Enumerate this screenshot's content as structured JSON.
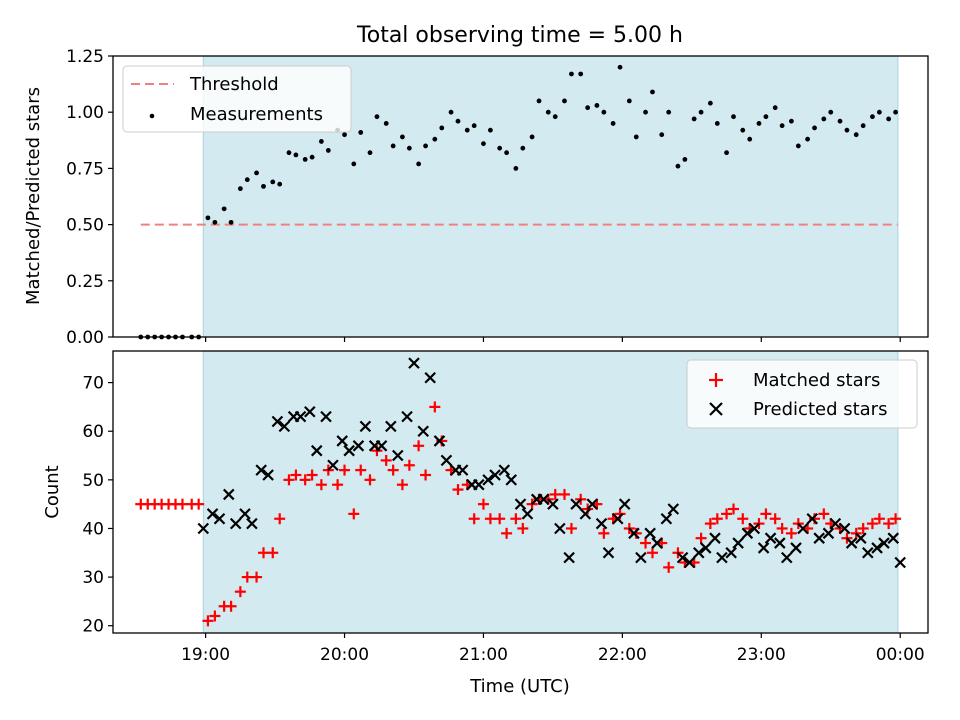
{
  "chart_data": {
    "type": "scatter",
    "title": "Total observing time = 5.00 h",
    "xlabel": "Time (UTC)",
    "x_ticks": [
      "19:00",
      "20:00",
      "21:00",
      "22:00",
      "23:00",
      "00:00"
    ],
    "x_tick_minutes": [
      1140,
      1200,
      1260,
      1320,
      1380,
      1440
    ],
    "xlim_minutes": [
      1100,
      1452
    ],
    "shaded_span_minutes": [
      1139,
      1439
    ],
    "shade_color": "#d4eaf1",
    "panels": [
      {
        "ylabel": "Matched/Predicted stars",
        "ylim": [
          0,
          1.25
        ],
        "y_ticks": [
          0.0,
          0.25,
          0.5,
          0.75,
          1.0,
          1.25
        ],
        "y_tick_labels": [
          "0.00",
          "0.25",
          "0.50",
          "0.75",
          "1.00",
          "1.25"
        ],
        "legend": {
          "position": "upper left",
          "entries": [
            "Threshold",
            "Measurements"
          ]
        },
        "threshold": {
          "name": "Threshold",
          "value": 0.5,
          "x_range_minutes": [
            1112,
            1439
          ],
          "color": "#f08080"
        },
        "series": [
          {
            "name": "Measurements",
            "marker": "dot",
            "color": "#000000",
            "x_minutes": [
              1112,
              1115,
              1118,
              1121,
              1124,
              1127,
              1130,
              1134,
              1137,
              1141,
              1144,
              1148,
              1151,
              1155,
              1158,
              1162,
              1165,
              1169,
              1172,
              1176,
              1179,
              1183,
              1186,
              1190,
              1193,
              1197,
              1200,
              1204,
              1207,
              1211,
              1214,
              1218,
              1221,
              1225,
              1228,
              1232,
              1235,
              1239,
              1242,
              1246,
              1249,
              1253,
              1256,
              1260,
              1263,
              1267,
              1270,
              1274,
              1277,
              1281,
              1284,
              1288,
              1291,
              1295,
              1298,
              1302,
              1305,
              1309,
              1312,
              1316,
              1319,
              1323,
              1326,
              1330,
              1333,
              1337,
              1340,
              1344,
              1347,
              1351,
              1354,
              1358,
              1361,
              1365,
              1368,
              1372,
              1375,
              1379,
              1382,
              1386,
              1389,
              1393,
              1396,
              1400,
              1403,
              1407,
              1410,
              1414,
              1417,
              1421,
              1424,
              1428,
              1431,
              1435,
              1438
            ],
            "y": [
              0.0,
              0.0,
              0.0,
              0.0,
              0.0,
              0.0,
              0.0,
              0.0,
              0.0,
              0.53,
              0.51,
              0.57,
              0.51,
              0.66,
              0.7,
              0.73,
              0.67,
              0.69,
              0.68,
              0.82,
              0.81,
              0.79,
              0.8,
              0.87,
              0.83,
              0.92,
              0.9,
              0.77,
              0.91,
              0.82,
              0.98,
              0.95,
              0.85,
              0.89,
              0.84,
              0.77,
              0.85,
              0.88,
              0.93,
              1.0,
              0.96,
              0.92,
              0.94,
              0.86,
              0.92,
              0.84,
              0.82,
              0.75,
              0.84,
              0.89,
              1.05,
              1.0,
              0.98,
              1.05,
              1.17,
              1.17,
              1.02,
              1.03,
              1.0,
              0.95,
              1.2,
              1.05,
              0.89,
              1.0,
              1.09,
              0.9,
              1.0,
              0.76,
              0.79,
              0.97,
              1.0,
              1.04,
              0.95,
              0.82,
              0.98,
              0.92,
              0.88,
              0.95,
              0.98,
              1.02,
              0.94,
              0.96,
              0.85,
              0.88,
              0.93,
              0.97,
              1.0,
              0.96,
              0.92,
              0.9,
              0.94,
              0.98,
              1.0,
              0.97,
              1.0
            ]
          }
        ]
      },
      {
        "ylabel": "Count",
        "ylim": [
          18.5,
          76.5
        ],
        "y_ticks": [
          20,
          30,
          40,
          50,
          60,
          70
        ],
        "y_tick_labels": [
          "20",
          "30",
          "40",
          "50",
          "60",
          "70"
        ],
        "legend": {
          "position": "upper right",
          "entries": [
            "Matched stars",
            "Predicted stars"
          ]
        },
        "series": [
          {
            "name": "Matched stars",
            "marker": "plus",
            "color": "#ff0000",
            "x_minutes": [
              1112,
              1115,
              1118,
              1121,
              1124,
              1127,
              1130,
              1134,
              1137,
              1141,
              1144,
              1148,
              1151,
              1155,
              1158,
              1162,
              1165,
              1169,
              1172,
              1176,
              1179,
              1183,
              1186,
              1190,
              1193,
              1197,
              1200,
              1204,
              1207,
              1211,
              1214,
              1218,
              1221,
              1225,
              1228,
              1232,
              1235,
              1239,
              1242,
              1246,
              1249,
              1253,
              1256,
              1260,
              1263,
              1267,
              1270,
              1274,
              1277,
              1281,
              1284,
              1288,
              1291,
              1295,
              1298,
              1302,
              1305,
              1309,
              1312,
              1316,
              1319,
              1323,
              1326,
              1330,
              1333,
              1337,
              1340,
              1344,
              1347,
              1351,
              1354,
              1358,
              1361,
              1365,
              1368,
              1372,
              1375,
              1379,
              1382,
              1386,
              1389,
              1393,
              1396,
              1400,
              1403,
              1407,
              1410,
              1414,
              1417,
              1421,
              1424,
              1428,
              1431,
              1435,
              1438
            ],
            "y": [
              45,
              45,
              45,
              45,
              45,
              45,
              45,
              45,
              45,
              21,
              22,
              24,
              24,
              27,
              30,
              30,
              35,
              35,
              42,
              50,
              51,
              50,
              51,
              49,
              52,
              49,
              52,
              43,
              52,
              50,
              56,
              54,
              52,
              49,
              53,
              57,
              51,
              65,
              58,
              52,
              48,
              49,
              42,
              45,
              42,
              42,
              39,
              42,
              40,
              45,
              46,
              46,
              47,
              47,
              40,
              46,
              44,
              45,
              39,
              42,
              43,
              40,
              39,
              37,
              35,
              37,
              32,
              35,
              33,
              33,
              38,
              41,
              42,
              43,
              44,
              42,
              40,
              41,
              43,
              42,
              40,
              39,
              41,
              40,
              42,
              43,
              41,
              40,
              38,
              39,
              40,
              41,
              42,
              41,
              42
            ]
          },
          {
            "name": "Predicted stars",
            "marker": "x",
            "color": "#000000",
            "x_minutes": [
              1139,
              1143,
              1146,
              1150,
              1153,
              1157,
              1160,
              1164,
              1167,
              1171,
              1174,
              1178,
              1181,
              1185,
              1188,
              1192,
              1195,
              1199,
              1202,
              1206,
              1209,
              1213,
              1216,
              1220,
              1223,
              1227,
              1230,
              1234,
              1237,
              1241,
              1244,
              1248,
              1251,
              1255,
              1258,
              1262,
              1265,
              1269,
              1272,
              1276,
              1279,
              1283,
              1286,
              1290,
              1293,
              1297,
              1300,
              1304,
              1307,
              1311,
              1314,
              1318,
              1321,
              1325,
              1328,
              1332,
              1335,
              1339,
              1342,
              1346,
              1349,
              1353,
              1356,
              1360,
              1363,
              1367,
              1370,
              1374,
              1377,
              1381,
              1384,
              1388,
              1391,
              1395,
              1398,
              1402,
              1405,
              1409,
              1412,
              1416,
              1419,
              1423,
              1426,
              1430,
              1433,
              1437,
              1440
            ],
            "y": [
              40,
              43,
              42,
              47,
              41,
              43,
              41,
              52,
              51,
              62,
              61,
              63,
              63,
              64,
              56,
              63,
              53,
              58,
              56,
              57,
              61,
              57,
              57,
              61,
              55,
              63,
              74,
              60,
              71,
              58,
              54,
              52,
              52,
              49,
              49,
              50,
              51,
              52,
              50,
              45,
              43,
              46,
              46,
              45,
              40,
              34,
              45,
              43,
              45,
              41,
              35,
              42,
              45,
              39,
              34,
              39,
              37,
              42,
              44,
              34,
              33,
              35,
              36,
              38,
              34,
              35,
              37,
              39,
              40,
              36,
              38,
              37,
              34,
              36,
              40,
              42,
              38,
              39,
              41,
              40,
              37,
              38,
              35,
              36,
              37,
              38,
              33
            ]
          }
        ]
      }
    ]
  }
}
